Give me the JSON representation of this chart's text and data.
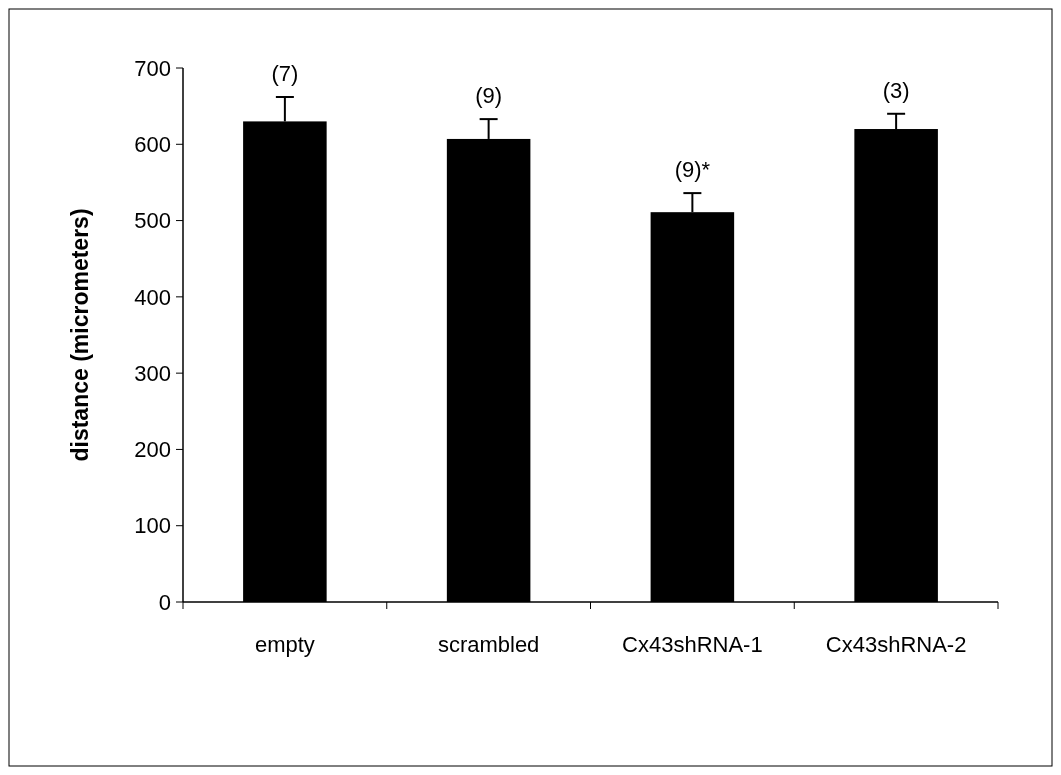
{
  "chart_data": {
    "type": "bar",
    "ylabel": "distance (micrometers)",
    "categories": [
      "empty",
      "scrambled",
      "Cx43shRNA-1",
      "Cx43shRNA-2"
    ],
    "series": [
      {
        "color": "#000000",
        "values": [
          630,
          607,
          511,
          620
        ],
        "errors": [
          32,
          26,
          25,
          20
        ]
      }
    ],
    "ylim": [
      0,
      700
    ],
    "yticks": [
      0,
      100,
      200,
      300,
      400,
      500,
      600,
      700
    ],
    "grid": false,
    "annotations": [
      {
        "text": "(7)",
        "x": "empty",
        "y": 662
      },
      {
        "text": "(9)",
        "x": "scrambled",
        "y": 633
      },
      {
        "text": "(9)*",
        "x": "Cx43shRNA-1",
        "y": 536
      },
      {
        "text": "(3)",
        "x": "Cx43shRNA-2",
        "y": 640
      }
    ]
  }
}
